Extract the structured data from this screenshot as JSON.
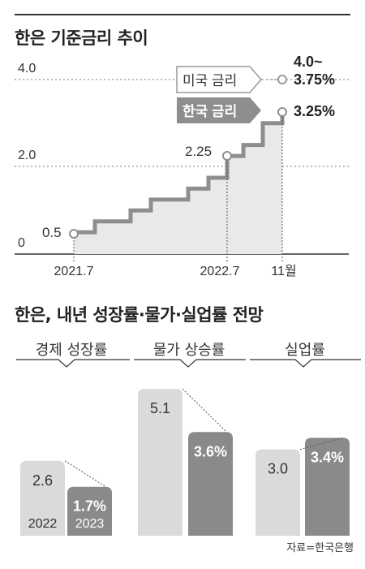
{
  "chart_data": [
    {
      "type": "line",
      "title": "한은 기준금리 추이",
      "x_tick_labels": [
        "2021.7",
        "2022.7",
        "11월"
      ],
      "y_tick_labels": [
        "4.0",
        "2.0",
        "0"
      ],
      "ylim": [
        0,
        4.5
      ],
      "grid": "dashed at 2.0 and 4.0",
      "series": [
        {
          "name": "한국 금리",
          "step_values": [
            0.5,
            0.75,
            1.0,
            1.25,
            1.5,
            1.75,
            2.25,
            2.5,
            3.0,
            3.25
          ],
          "labels": [
            {
              "value": 0.5,
              "text": "0.5"
            },
            {
              "value": 2.25,
              "text": "2.25"
            },
            {
              "value": 3.25,
              "text": "3.25%"
            }
          ]
        },
        {
          "name": "미국 금리",
          "value": 3.875,
          "label": {
            "line1": "4.0~",
            "line2": "3.75%"
          }
        }
      ]
    },
    {
      "type": "bar",
      "title": "한은, 내년 성장률·물가·실업률 전망",
      "groups": [
        "경제 성장률",
        "물가 상승률",
        "실업률"
      ],
      "legend": [
        "2022",
        "2023"
      ],
      "series": [
        {
          "name": "2022",
          "values": [
            2.6,
            5.1,
            3.0
          ],
          "labels": [
            "2.6",
            "5.1",
            "3.0"
          ]
        },
        {
          "name": "2023",
          "values": [
            1.7,
            3.6,
            3.4
          ],
          "labels": [
            "1.7%",
            "3.6%",
            "3.4%"
          ]
        }
      ]
    }
  ],
  "source": "자료=한국은행",
  "colors": {
    "line": "#8e8e8e",
    "area": "#e9e9e9",
    "us_line": "#bdbdbd",
    "bar_2022": "#dadada",
    "bar_2023": "#8a8a8a"
  }
}
